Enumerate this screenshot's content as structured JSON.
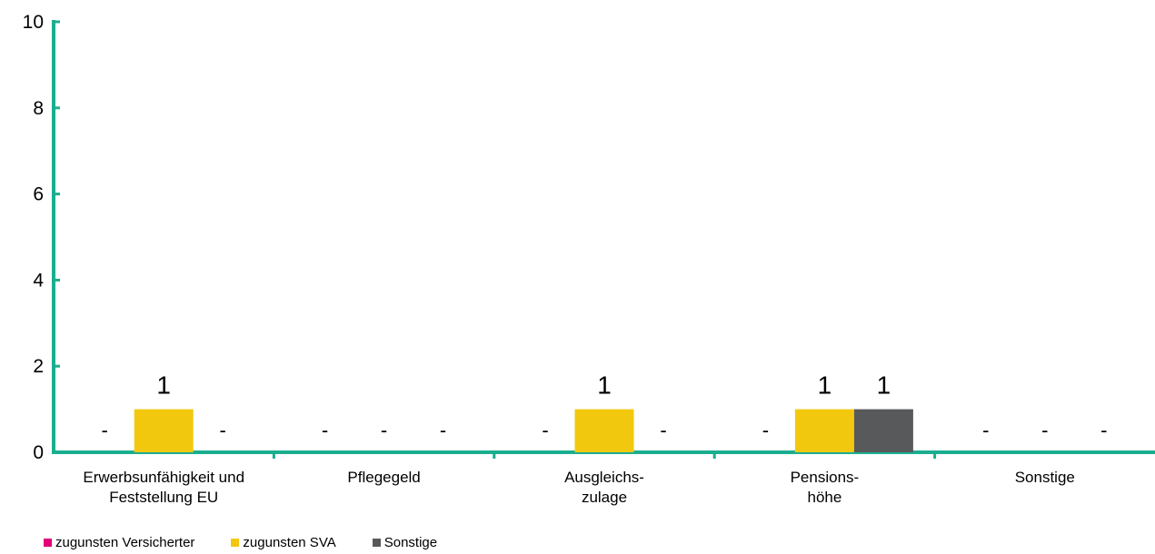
{
  "chart_data": {
    "type": "bar",
    "categories": [
      [
        "Erwerbsunfähigkeit und",
        "Feststellung EU"
      ],
      [
        "Pflegegeld"
      ],
      [
        "Ausgleichs-",
        "zulage"
      ],
      [
        "Pensions-",
        "höhe"
      ],
      [
        "Sonstige"
      ]
    ],
    "series": [
      {
        "name": "zugunsten Versicherter",
        "color": "#e2007a",
        "values": [
          0,
          0,
          0,
          0,
          0
        ],
        "labels": [
          "-",
          "-",
          "-",
          "-",
          "-"
        ]
      },
      {
        "name": "zugunsten SVA",
        "color": "#f2c80f",
        "values": [
          1,
          0,
          1,
          1,
          0
        ],
        "labels": [
          "1",
          "-",
          "1",
          "1",
          "-"
        ]
      },
      {
        "name": "Sonstige",
        "color": "#58595b",
        "values": [
          0,
          0,
          0,
          1,
          0
        ],
        "labels": [
          "-",
          "-",
          "-",
          "1",
          "-"
        ]
      }
    ],
    "ylim": [
      0,
      10
    ],
    "yticks": [
      "0",
      "2",
      "4",
      "6",
      "8",
      "10"
    ],
    "axis_color": "#1aae8f",
    "grid": false,
    "legend_position": "bottom-left"
  }
}
